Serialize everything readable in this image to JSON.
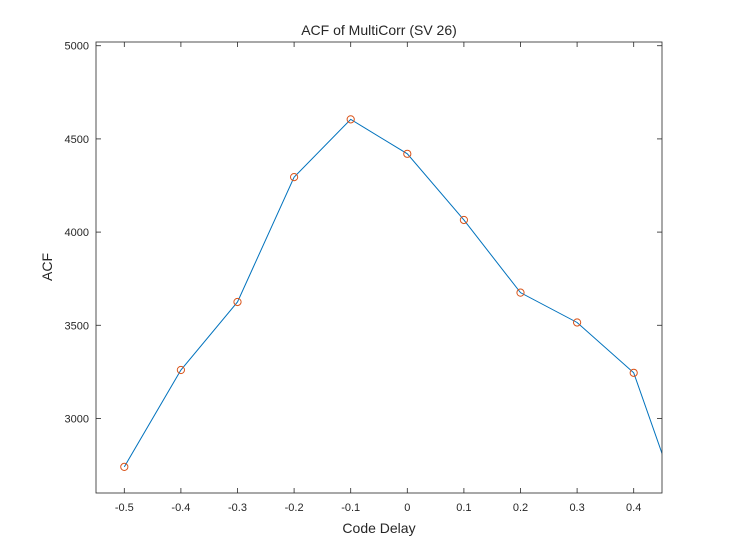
{
  "chart_data": {
    "type": "line",
    "title": "ACF of MultiCorr (SV 26)",
    "xlabel": "Code Delay",
    "ylabel": "ACF",
    "xlim": [
      -0.55,
      0.45
    ],
    "ylim": [
      2600,
      5020
    ],
    "xticks": [
      -0.5,
      -0.4,
      -0.3,
      -0.2,
      -0.1,
      0,
      0.1,
      0.2,
      0.3,
      0.4
    ],
    "xtick_labels": [
      "-0.5",
      "-0.4",
      "-0.3",
      "-0.2",
      "-0.1",
      "0",
      "0.1",
      "0.2",
      "0.3",
      "0.4"
    ],
    "yticks": [
      3000,
      3500,
      4000,
      4500,
      5000
    ],
    "ytick_labels": [
      "3000",
      "3500",
      "4000",
      "4500",
      "5000"
    ],
    "grid": false,
    "series": [
      {
        "line_color": "#0072BD",
        "marker": "circle",
        "marker_color": "#D95319",
        "x": [
          -0.5,
          -0.4,
          -0.3,
          -0.2,
          -0.1,
          0,
          0.1,
          0.2,
          0.3,
          0.4,
          0.5
        ],
        "y": [
          2740,
          3260,
          3625,
          4295,
          4605,
          4420,
          4065,
          3675,
          3515,
          3245,
          2380
        ],
        "markers_x": [
          -0.5,
          -0.4,
          -0.3,
          -0.2,
          -0.1,
          0,
          0.1,
          0.2,
          0.3,
          0.4
        ]
      }
    ]
  }
}
